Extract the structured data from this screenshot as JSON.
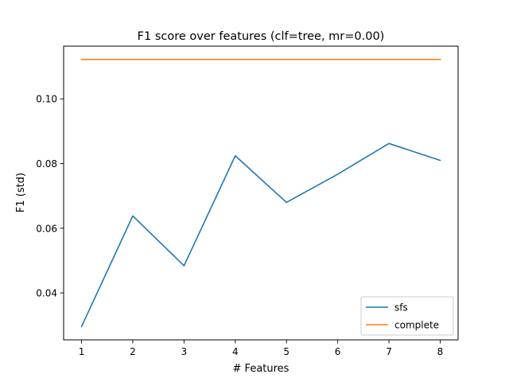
{
  "chart_data": {
    "type": "line",
    "title": "F1 score over features (clf=tree, mr=0.00)",
    "xlabel": "# Features",
    "ylabel": "F1 (std)",
    "x": [
      1,
      2,
      3,
      4,
      5,
      6,
      7,
      8
    ],
    "xticks": [
      1,
      2,
      3,
      4,
      5,
      6,
      7,
      8
    ],
    "yticks": [
      0.04,
      0.06,
      0.08,
      0.1
    ],
    "ytick_labels": [
      "0.04",
      "0.06",
      "0.08",
      "0.10"
    ],
    "xlim": [
      0.65,
      8.35
    ],
    "ylim": [
      0.0255,
      0.1163
    ],
    "grid": false,
    "legend_position": "lower-right",
    "series": [
      {
        "name": "sfs",
        "color": "#1f77b4",
        "values": [
          0.0296,
          0.0638,
          0.0484,
          0.0824,
          0.068,
          0.0767,
          0.0862,
          0.081
        ]
      },
      {
        "name": "complete",
        "color": "#ff7f0e",
        "values": [
          0.1122,
          0.1122,
          0.1122,
          0.1122,
          0.1122,
          0.1122,
          0.1122,
          0.1122
        ]
      }
    ]
  }
}
